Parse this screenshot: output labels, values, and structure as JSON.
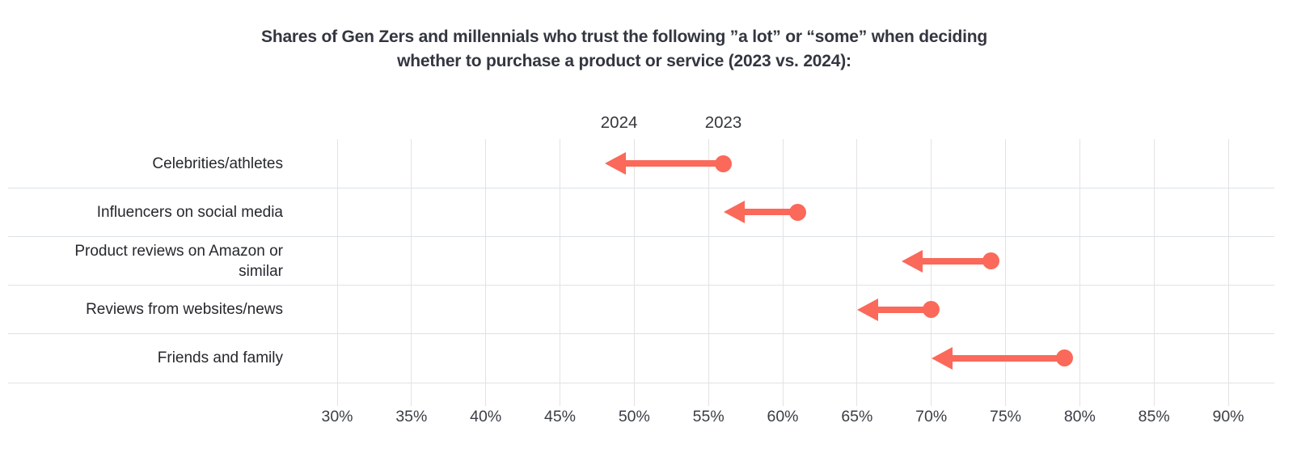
{
  "title": {
    "lines": [
      "Shares of Gen Zers and millennials who trust the following ”a lot” or “some” when deciding",
      "whether to purchase a product or service (2023 vs. 2024):"
    ]
  },
  "legend": {
    "labels": {
      "y2024": "2024",
      "y2023": "2023"
    }
  },
  "chart_data": {
    "type": "dumbbell-arrow",
    "title": "Shares of Gen Zers and millennials who trust the following ”a lot” or “some” when deciding whether to purchase a product or service (2023 vs. 2024):",
    "categories": [
      "Celebrities/athletes",
      "Influencers on social media",
      "Product reviews on Amazon or similar",
      "Reviews from websites/news",
      "Friends and family"
    ],
    "series": [
      {
        "name": "2023",
        "role": "start-dot",
        "values": [
          56,
          61,
          74,
          70,
          79
        ]
      },
      {
        "name": "2024",
        "role": "end-arrowhead",
        "values": [
          48,
          56,
          68,
          65,
          70
        ]
      }
    ],
    "x_axis": {
      "min": 30,
      "max": 90,
      "step": 5,
      "unit": "%",
      "tick_labels": [
        "30%",
        "35%",
        "40%",
        "45%",
        "50%",
        "55%",
        "60%",
        "65%",
        "70%",
        "75%",
        "80%",
        "85%",
        "90%"
      ]
    },
    "annotation": "arrows point from 2023 value (dot) to 2024 value (arrowhead)",
    "grid": true,
    "legend_position": "above first row",
    "marker_color": "#fa695a"
  },
  "colors": {
    "accent": "#fa695a",
    "title_text": "#333640",
    "label_text": "#26282d",
    "axis_text": "#3b3e45",
    "vertical_grid": "#e3e3e3",
    "horizontal_grid": "#dee2e6",
    "background": "#ffffff"
  }
}
